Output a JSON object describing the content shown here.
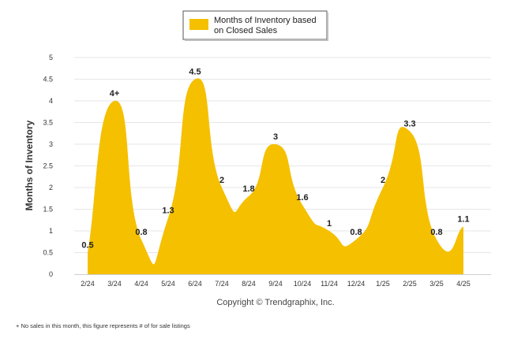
{
  "legend": {
    "label_line1": "Months of Inventory based",
    "label_line2": "on Closed Sales"
  },
  "copyright": "Copyright © Trendgraphix, Inc.",
  "footnote": "+  No sales in this month, this figure represents # of for sale listings",
  "colors": {
    "fill": "#F5C000",
    "grid": "#e6e6e6"
  },
  "chart_data": {
    "type": "area",
    "categories": [
      "2/24",
      "3/24",
      "4/24",
      "5/24",
      "6/24",
      "7/24",
      "8/24",
      "9/24",
      "10/24",
      "11/24",
      "12/24",
      "1/25",
      "2/25",
      "3/25",
      "4/25"
    ],
    "series": [
      {
        "name": "Months of Inventory based on Closed Sales",
        "values": [
          0.5,
          4,
          0.8,
          1.3,
          4.5,
          2,
          1.8,
          3,
          1.6,
          1,
          0.8,
          2,
          3.3,
          0.8,
          1.1
        ]
      }
    ],
    "data_labels": [
      "0.5",
      "4+",
      "0.8",
      "1.3",
      "4.5",
      "2",
      "1.8",
      "3",
      "1.6",
      "1",
      "0.8",
      "2",
      "3.3",
      "0.8",
      "1.1"
    ],
    "ylabel": "Months of Inventory",
    "ylim": [
      0,
      5
    ],
    "yticks": [
      "0",
      "0.5",
      "1",
      "1.5",
      "2",
      "2.5",
      "3",
      "3.5",
      "4",
      "4.5",
      "5"
    ],
    "grid": true,
    "legend_position": "top-center"
  }
}
